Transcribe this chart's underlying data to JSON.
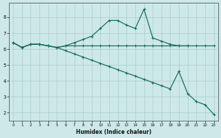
{
  "xlabel": "Humidex (Indice chaleur)",
  "ylabel": "",
  "bg_color": "#cce8e8",
  "grid_color": "#aacccc",
  "line_color": "#1a6b5a",
  "xlim": [
    -0.5,
    23.5
  ],
  "ylim": [
    1.5,
    8.9
  ],
  "xticks": [
    0,
    1,
    2,
    3,
    4,
    5,
    6,
    7,
    8,
    9,
    10,
    11,
    12,
    13,
    14,
    15,
    16,
    17,
    18,
    19,
    20,
    21,
    22,
    23
  ],
  "yticks": [
    2,
    3,
    4,
    5,
    6,
    7,
    8
  ],
  "line1_x": [
    0,
    1,
    2,
    3,
    4,
    5,
    6,
    7,
    8,
    9,
    10,
    11,
    12,
    13,
    14,
    15,
    16,
    17,
    18,
    19,
    20
  ],
  "line1_y": [
    6.4,
    6.1,
    6.3,
    6.3,
    6.2,
    6.1,
    6.2,
    6.4,
    6.6,
    6.8,
    7.3,
    7.8,
    7.8,
    7.5,
    7.3,
    8.5,
    6.7,
    6.5,
    6.3,
    6.2,
    6.2
  ],
  "line2_x": [
    0,
    1,
    2,
    3,
    4,
    5,
    6,
    7,
    8,
    9,
    10,
    11,
    12,
    13,
    14,
    15,
    16,
    17,
    18,
    19,
    20,
    21,
    22,
    23
  ],
  "line2_y": [
    6.4,
    6.1,
    6.3,
    6.3,
    6.2,
    6.1,
    6.2,
    6.2,
    6.2,
    6.2,
    6.2,
    6.2,
    6.2,
    6.2,
    6.2,
    6.2,
    6.2,
    6.2,
    6.2,
    6.2,
    6.2,
    6.2,
    6.2,
    6.2
  ],
  "line3_x": [
    0,
    1,
    2,
    3,
    4,
    5,
    6,
    7,
    8,
    9,
    10,
    11,
    12,
    13,
    14,
    15,
    16,
    17,
    18,
    19,
    20,
    21,
    22,
    23
  ],
  "line3_y": [
    6.4,
    6.1,
    6.3,
    6.3,
    6.2,
    6.1,
    5.9,
    5.7,
    5.5,
    5.3,
    5.1,
    4.9,
    4.7,
    4.5,
    4.3,
    4.1,
    3.9,
    3.7,
    3.5,
    4.6,
    3.2,
    2.7,
    2.5,
    1.9
  ]
}
